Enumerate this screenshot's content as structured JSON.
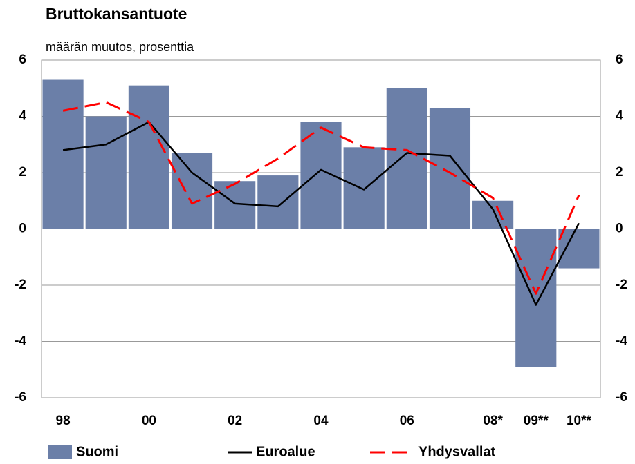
{
  "chart_data": {
    "type": "bar_line",
    "title": "Bruttokansantuote",
    "subtitle": "määrän muutos, prosenttia",
    "categories": [
      "98",
      null,
      "00",
      null,
      "02",
      null,
      "04",
      null,
      "06",
      null,
      "08*",
      "09**",
      "10**"
    ],
    "series": [
      {
        "name": "Suomi",
        "type": "bar",
        "color": "#6b7fa8",
        "values": [
          5.3,
          4.0,
          5.1,
          2.7,
          1.7,
          1.9,
          3.8,
          2.9,
          5.0,
          4.3,
          1.0,
          -4.9,
          -1.4
        ]
      },
      {
        "name": "Euroalue",
        "type": "line",
        "color": "#000000",
        "values": [
          2.8,
          3.0,
          3.8,
          2.0,
          0.9,
          0.8,
          2.1,
          1.4,
          2.7,
          2.6,
          0.7,
          -2.7,
          0.2
        ]
      },
      {
        "name": "Yhdysvallat",
        "type": "line",
        "dash": true,
        "color": "#ff0000",
        "values": [
          4.2,
          4.5,
          3.8,
          0.9,
          1.6,
          2.5,
          3.6,
          2.9,
          2.8,
          2.0,
          1.1,
          -2.3,
          1.2
        ]
      }
    ],
    "ylim": [
      -6,
      6
    ],
    "yticks": [
      -6,
      -4,
      -2,
      0,
      2,
      4,
      6
    ],
    "y2lim": [
      -6,
      6
    ],
    "y2ticks": [
      -6,
      -4,
      -2,
      0,
      2,
      4,
      6
    ],
    "grid": true
  }
}
